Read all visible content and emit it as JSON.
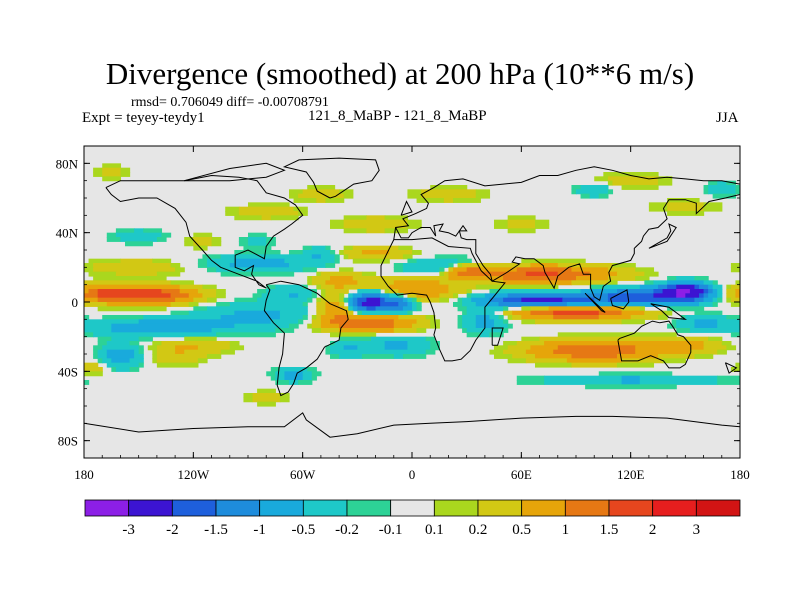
{
  "header": {
    "title": "Divergence (smoothed) at 200 hPa (10**6 m/s)",
    "stats": "rmsd= 0.706049 diff= -0.00708791",
    "expt": "Expt = teyey-teydy1",
    "cases": "121_8_MaBP - 121_8_MaBP",
    "season": "JJA"
  },
  "chart_data": {
    "type": "heatmap",
    "title": "Divergence (smoothed) at 200 hPa (10**6 m/s)",
    "xlabel": "",
    "ylabel": "",
    "xlim": [
      -180,
      180
    ],
    "ylim": [
      -90,
      90
    ],
    "x_ticks": [
      {
        "value": -180,
        "label": "180"
      },
      {
        "value": -120,
        "label": "120W"
      },
      {
        "value": -60,
        "label": "60W"
      },
      {
        "value": 0,
        "label": "0"
      },
      {
        "value": 60,
        "label": "60E"
      },
      {
        "value": 120,
        "label": "120E"
      },
      {
        "value": 180,
        "label": "180"
      }
    ],
    "y_ticks": [
      {
        "value": 80,
        "label": "80N"
      },
      {
        "value": 40,
        "label": "40N"
      },
      {
        "value": 0,
        "label": "0"
      },
      {
        "value": -40,
        "label": "40S"
      },
      {
        "value": -80,
        "label": "80S"
      }
    ],
    "levels": [
      -3,
      -2,
      -1.5,
      -1,
      -0.5,
      -0.2,
      -0.1,
      0.1,
      0.2,
      0.5,
      1,
      1.5,
      2,
      3
    ],
    "level_labels": [
      "-3",
      "-2",
      "-1.5",
      "-1",
      "-0.5",
      "-0.2",
      "-0.1",
      "0.1",
      "0.2",
      "0.5",
      "1",
      "1.5",
      "2",
      "3"
    ],
    "colors": [
      "#8c1fe6",
      "#3c14d2",
      "#1e5fdc",
      "#1e8cdc",
      "#19aadc",
      "#1ec8c8",
      "#2dd296",
      "#e6e6e6",
      "#aad71e",
      "#d2c814",
      "#e6a50a",
      "#e67814",
      "#e6461e",
      "#e61e1e",
      "#d21414"
    ],
    "features": [
      {
        "lon": -145,
        "lat": 4,
        "rlon": 26,
        "rlat": 5,
        "value": 2.0
      },
      {
        "lon": -172,
        "lat": 5,
        "rlon": 12,
        "rlat": 5,
        "value": 1.0
      },
      {
        "lon": -140,
        "lat": -15,
        "rlon": 35,
        "rlat": 5,
        "value": -0.9
      },
      {
        "lon": -150,
        "lat": 20,
        "rlon": 30,
        "rlat": 5,
        "value": 0.4
      },
      {
        "lon": -160,
        "lat": -31,
        "rlon": 12,
        "rlat": 7,
        "value": -0.8
      },
      {
        "lon": -130,
        "lat": -32,
        "rlon": 15,
        "rlat": 5,
        "value": 0.4
      },
      {
        "lon": -120,
        "lat": -25,
        "rlon": 22,
        "rlat": 5,
        "value": 0.5
      },
      {
        "lon": -175,
        "lat": -38,
        "rlon": 8,
        "rlat": 4,
        "value": 0.4
      },
      {
        "lon": -85,
        "lat": 22,
        "rlon": 30,
        "rlat": 5,
        "value": -0.7
      },
      {
        "lon": -85,
        "lat": -8,
        "rlon": 35,
        "rlat": 8,
        "value": -0.6
      },
      {
        "lon": -65,
        "lat": 5,
        "rlon": 15,
        "rlat": 5,
        "value": -0.5
      },
      {
        "lon": -85,
        "lat": 35,
        "rlon": 10,
        "rlat": 4,
        "value": -0.3
      },
      {
        "lon": -115,
        "lat": 35,
        "rlon": 10,
        "rlat": 4,
        "value": 0.3
      },
      {
        "lon": -50,
        "lat": 27,
        "rlon": 10,
        "rlat": 5,
        "value": -0.5
      },
      {
        "lon": -22,
        "lat": 0,
        "rlon": 13,
        "rlat": 6,
        "value": -2.5
      },
      {
        "lon": -5,
        "lat": -1,
        "rlon": 7,
        "rlat": 5,
        "value": -1.1
      },
      {
        "lon": -25,
        "lat": -12,
        "rlon": 25,
        "rlat": 5,
        "value": 1.6
      },
      {
        "lon": -40,
        "lat": 12,
        "rlon": 15,
        "rlat": 6,
        "value": 0.6
      },
      {
        "lon": -42,
        "lat": -3,
        "rlon": 10,
        "rlat": 7,
        "value": 1.0
      },
      {
        "lon": 0,
        "lat": 7,
        "rlon": 25,
        "rlat": 6,
        "value": 1.0
      },
      {
        "lon": -20,
        "lat": 28,
        "rlon": 20,
        "rlat": 4,
        "value": 0.6
      },
      {
        "lon": 20,
        "lat": 20,
        "rlon": 25,
        "rlat": 5,
        "value": -0.7
      },
      {
        "lon": -8,
        "lat": -25,
        "rlon": 18,
        "rlat": 6,
        "value": -0.6
      },
      {
        "lon": -35,
        "lat": -27,
        "rlon": 10,
        "rlat": 5,
        "value": -0.5
      },
      {
        "lon": -65,
        "lat": -42,
        "rlon": 10,
        "rlat": 4,
        "value": -0.7
      },
      {
        "lon": -80,
        "lat": -55,
        "rlon": 12,
        "rlat": 4,
        "value": 0.3
      },
      {
        "lon": 70,
        "lat": 16,
        "rlon": 40,
        "rlat": 5,
        "value": 1.6
      },
      {
        "lon": 30,
        "lat": 18,
        "rlon": 12,
        "rlat": 4,
        "value": 1.2
      },
      {
        "lon": 70,
        "lat": 1,
        "rlon": 30,
        "rlat": 4,
        "value": -2.3
      },
      {
        "lon": 125,
        "lat": 3,
        "rlon": 28,
        "rlat": 5,
        "value": -1.8
      },
      {
        "lon": 150,
        "lat": 6,
        "rlon": 13,
        "rlat": 5,
        "value": -2.8
      },
      {
        "lon": 90,
        "lat": -6,
        "rlon": 35,
        "rlat": 4,
        "value": 1.8
      },
      {
        "lon": 100,
        "lat": -28,
        "rlon": 35,
        "rlat": 6,
        "value": 1.5
      },
      {
        "lon": 150,
        "lat": -25,
        "rlon": 20,
        "rlat": 5,
        "value": 0.6
      },
      {
        "lon": 160,
        "lat": -12,
        "rlon": 15,
        "rlat": 5,
        "value": -0.6
      },
      {
        "lon": 40,
        "lat": -10,
        "rlon": 12,
        "rlat": 8,
        "value": -0.7
      },
      {
        "lon": 120,
        "lat": -45,
        "rlon": 50,
        "rlat": 3,
        "value": -0.6
      },
      {
        "lon": -20,
        "lat": 45,
        "rlon": 20,
        "rlat": 4,
        "value": 0.5
      },
      {
        "lon": -80,
        "lat": 52,
        "rlon": 20,
        "rlat": 4,
        "value": 0.4
      },
      {
        "lon": -50,
        "lat": 62,
        "rlon": 15,
        "rlat": 4,
        "value": 0.4
      },
      {
        "lon": 20,
        "lat": 62,
        "rlon": 20,
        "rlat": 4,
        "value": 0.4
      },
      {
        "lon": 120,
        "lat": 70,
        "rlon": 20,
        "rlat": 4,
        "value": 0.4
      },
      {
        "lon": 150,
        "lat": 55,
        "rlon": 20,
        "rlat": 4,
        "value": 0.3
      },
      {
        "lon": 60,
        "lat": 45,
        "rlon": 15,
        "rlat": 4,
        "value": 0.3
      },
      {
        "lon": 100,
        "lat": 65,
        "rlon": 10,
        "rlat": 4,
        "value": -0.5
      },
      {
        "lon": 170,
        "lat": 65,
        "rlon": 8,
        "rlat": 4,
        "value": -0.5
      },
      {
        "lon": -150,
        "lat": 38,
        "rlon": 15,
        "rlat": 4,
        "value": -0.4
      },
      {
        "lon": -165,
        "lat": 75,
        "rlon": 10,
        "rlat": 4,
        "value": 0.3
      }
    ]
  }
}
